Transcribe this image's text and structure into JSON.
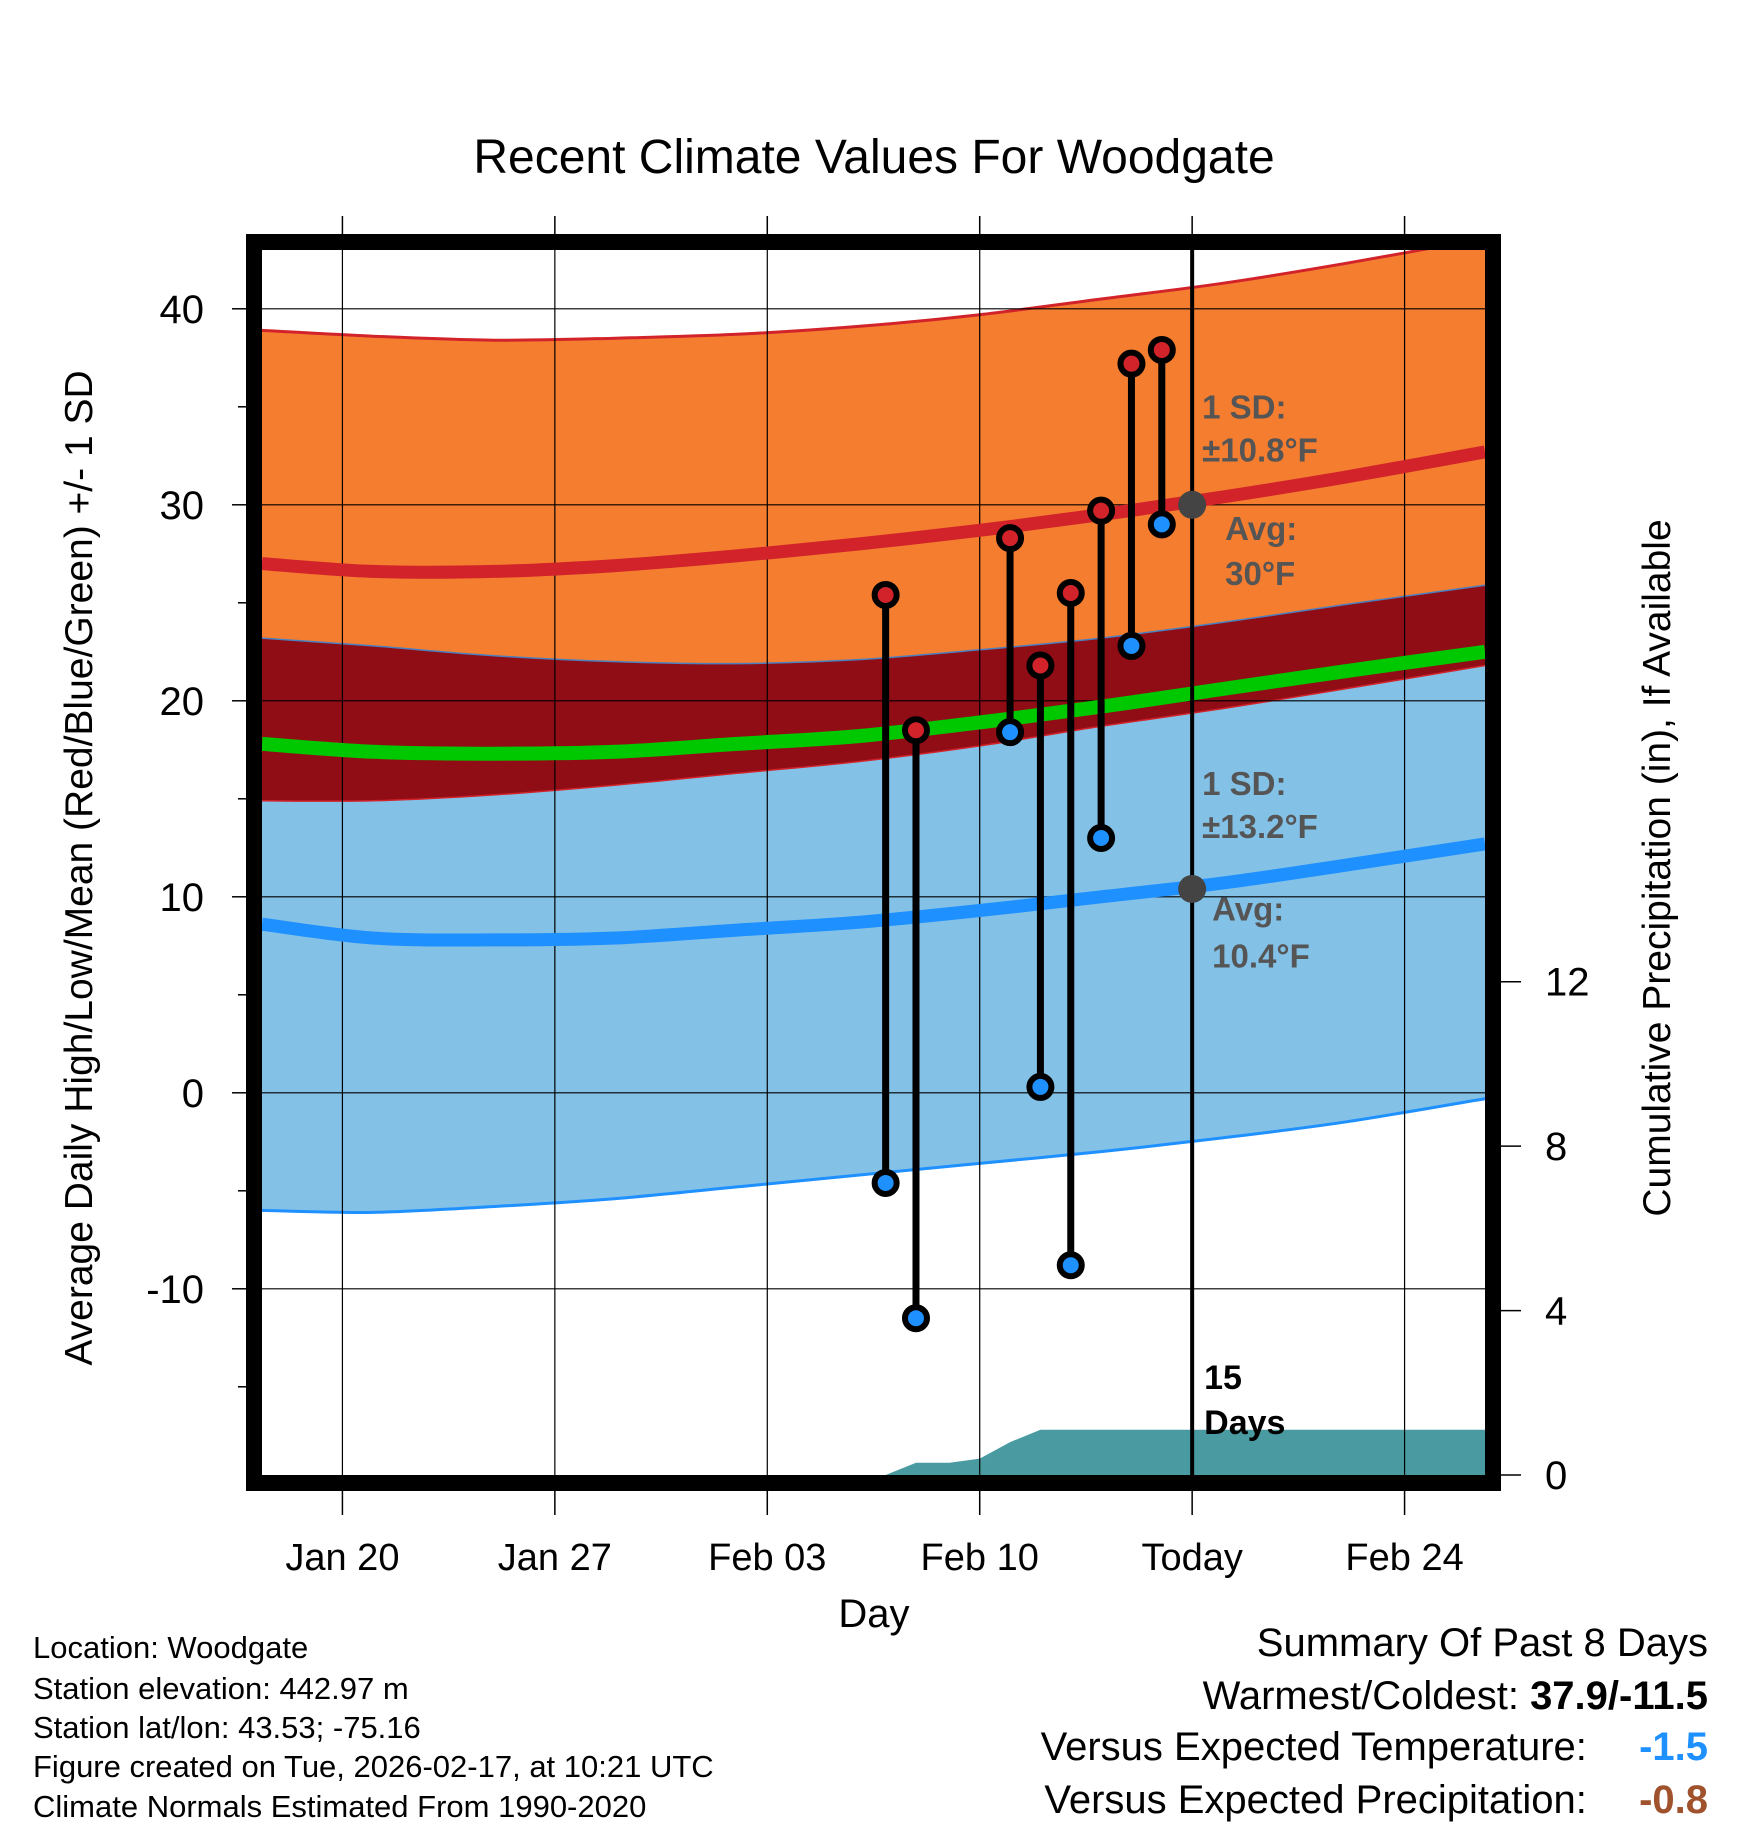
{
  "chart_data": {
    "type": "line",
    "title": "Recent Climate Values For Woodgate",
    "xlabel": "Day",
    "ylabel": "Average Daily High/Low/Mean (Red/Blue/Green) +/- 1 SD",
    "ylabel_right": "Cumulative Precipitation (in), If Available",
    "x_ticks": [
      {
        "day": 3,
        "label": "Jan 20"
      },
      {
        "day": 10,
        "label": "Jan 27"
      },
      {
        "day": 17,
        "label": "Feb 03"
      },
      {
        "day": 24,
        "label": "Feb 10"
      },
      {
        "day": 31,
        "label": "Today"
      },
      {
        "day": 38,
        "label": "Feb 24"
      }
    ],
    "y_ticks": [
      -10,
      0,
      10,
      20,
      30,
      40
    ],
    "y_ticks_right": [
      0,
      4,
      8,
      12
    ],
    "ylim": [
      -19.5,
      43
    ],
    "ylim_right": [
      0,
      29.8
    ],
    "xlim": [
      0.35,
      40.65
    ],
    "today_day": 31,
    "normals_days": [
      0.35,
      4,
      8,
      12,
      16,
      20,
      24,
      28,
      32,
      36,
      40.65
    ],
    "normal_high": [
      27.0,
      26.6,
      26.6,
      26.9,
      27.4,
      28.0,
      28.7,
      29.5,
      30.4,
      31.4,
      32.7
    ],
    "normal_high_plus_sd": [
      38.9,
      38.6,
      38.4,
      38.5,
      38.7,
      39.1,
      39.7,
      40.5,
      41.3,
      42.3,
      43.6
    ],
    "normal_high_minus_sd": [
      23.2,
      22.8,
      22.3,
      22.0,
      21.9,
      22.1,
      22.6,
      23.2,
      24.0,
      24.9,
      25.9
    ],
    "normal_mean": [
      17.8,
      17.4,
      17.3,
      17.4,
      17.8,
      18.2,
      18.9,
      19.7,
      20.6,
      21.5,
      22.5
    ],
    "normal_low": [
      8.6,
      7.9,
      7.8,
      7.9,
      8.3,
      8.7,
      9.3,
      10.0,
      10.7,
      11.6,
      12.7
    ],
    "normal_low_plus_sd": [
      14.9,
      14.9,
      15.2,
      15.7,
      16.3,
      16.9,
      17.7,
      18.7,
      19.6,
      20.6,
      21.8
    ],
    "normal_low_minus_sd": [
      -6.0,
      -6.1,
      -5.8,
      -5.4,
      -4.8,
      -4.2,
      -3.6,
      -3.0,
      -2.3,
      -1.5,
      -0.3
    ],
    "observations": [
      {
        "day": 20.9,
        "high": 25.4,
        "low": -4.6
      },
      {
        "day": 21.9,
        "high": 18.5,
        "low": -11.5
      },
      {
        "day": 25.0,
        "high": 28.3,
        "low": 18.4
      },
      {
        "day": 26.0,
        "high": 21.8,
        "low": 0.3
      },
      {
        "day": 27.0,
        "high": 25.5,
        "low": -8.8
      },
      {
        "day": 28.0,
        "high": 29.7,
        "low": 13.0
      },
      {
        "day": 29.0,
        "high": 37.2,
        "low": 22.8
      },
      {
        "day": 30.0,
        "high": 37.9,
        "low": 29.0
      }
    ],
    "precip_days": [
      20.9,
      21.9,
      23.0,
      24.0,
      25.0,
      26.0,
      28.0,
      31.0,
      40.65
    ],
    "precip_cumulative": [
      0.0,
      0.3,
      0.3,
      0.4,
      0.8,
      1.1,
      1.1,
      1.1,
      1.1
    ],
    "annotations": {
      "high_sd_title": "1 SD:",
      "high_sd_value": "±10.8°F",
      "high_avg_title": "Avg:",
      "high_avg_value": "30°F",
      "today_high_avg": 30,
      "low_sd_title": "1 SD:",
      "low_sd_value": "±13.2°F",
      "low_avg_title": "Avg:",
      "low_avg_value": "10.4°F",
      "today_low_avg": 10.4,
      "days_count": "15",
      "days_label": "Days"
    },
    "colors": {
      "high_band": "#f47d30",
      "high_line": "#d2232a",
      "mean_band": "#910d16",
      "mean_line": "#00c800",
      "low_band": "#83c1e7",
      "low_line": "#1e90ff",
      "precip": "#4a9ba1",
      "annotation": "#555555",
      "avg_marker": "#444444"
    }
  },
  "footer": {
    "location": "Location: Woodgate",
    "elevation": "Station elevation: 442.97 m",
    "latlon": "Station lat/lon: 43.53; -75.16",
    "created": "Figure created on Tue, 2026-02-17, at 10:21 UTC",
    "normals": "Climate Normals Estimated From 1990-2020"
  },
  "summary": {
    "title": "Summary Of Past 8 Days",
    "warmest_label": "Warmest/Coldest:",
    "warmest_value": "37.9/-11.5",
    "temp_label": "Versus Expected Temperature:",
    "temp_value": "-1.5",
    "temp_color": "#1e90ff",
    "precip_label": "Versus Expected Precipitation:",
    "precip_value": "-0.8",
    "precip_color": "#a0522d"
  }
}
